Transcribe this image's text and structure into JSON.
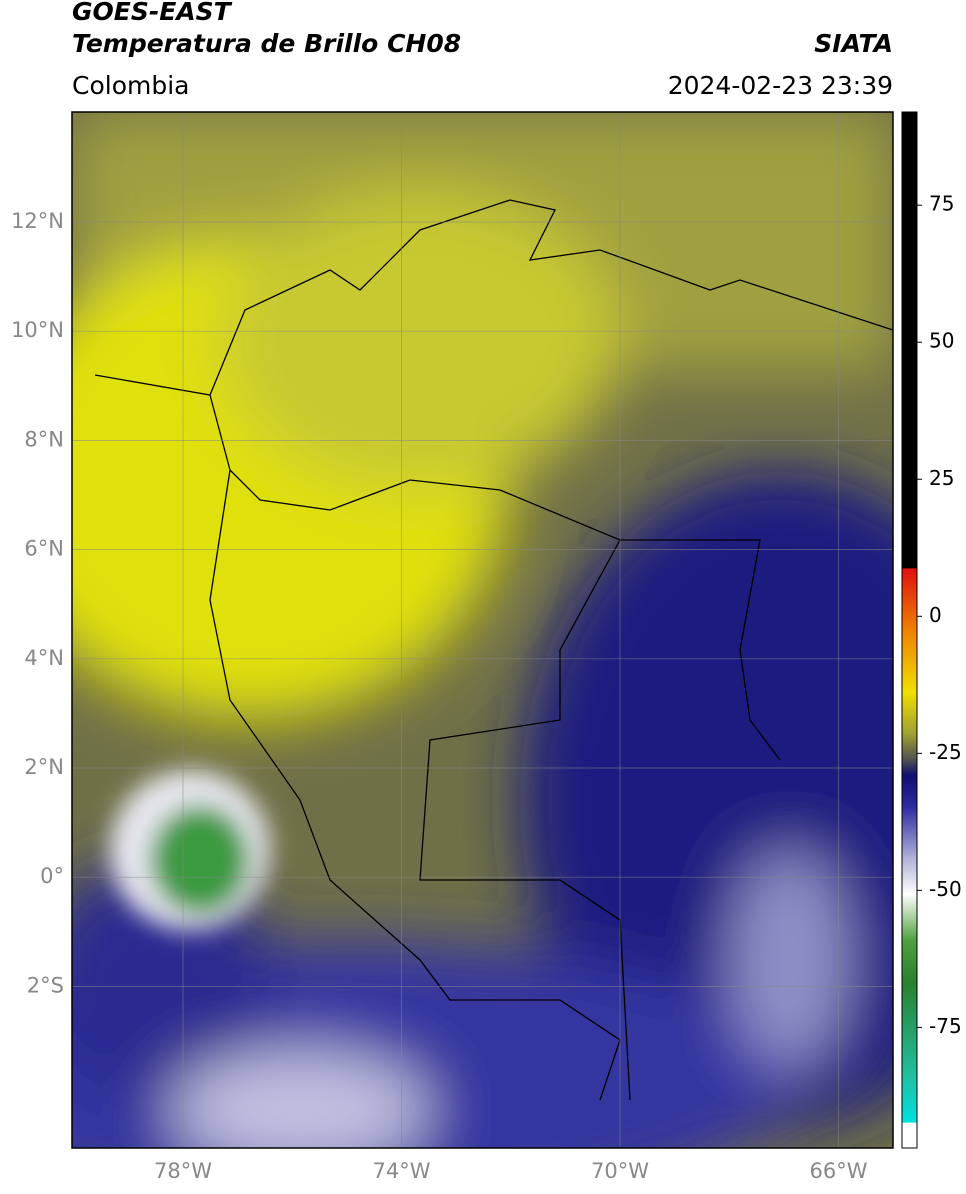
{
  "header": {
    "title_line1": "GOES-EAST",
    "title_line2": "Temperatura de Brillo CH08",
    "subtitle": "Colombia",
    "source": "SIATA",
    "timestamp": "2024-02-23 23:39"
  },
  "map": {
    "lat_ticks": [
      "12°N",
      "10°N",
      "8°N",
      "6°N",
      "4°N",
      "2°N",
      "0°",
      "2°S"
    ],
    "lon_ticks": [
      "78°W",
      "74°W",
      "70°W",
      "66°W"
    ]
  },
  "colorbar": {
    "clim": [
      -97,
      92
    ],
    "ticks": [
      75,
      50,
      25,
      0,
      -25,
      -50,
      -75
    ]
  }
}
